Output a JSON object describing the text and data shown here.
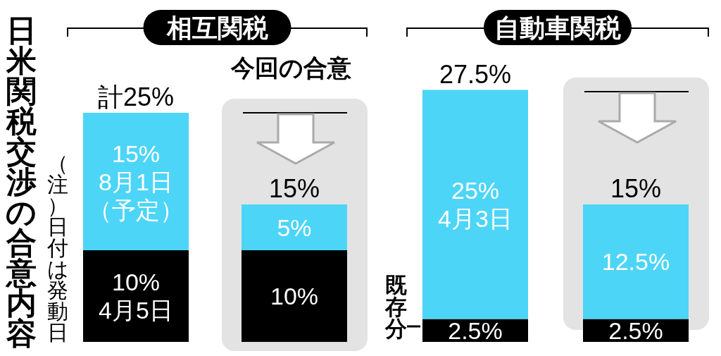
{
  "chart_data": {
    "type": "bar",
    "stacked": true,
    "title": "日米関税交渉の合意内容",
    "categories": [
      null,
      "今回の合意",
      null,
      null
    ],
    "series": [
      {
        "color": "#000000",
        "values": [
          10,
          10,
          2.5,
          2.5
        ],
        "value_labels": [
          "10%\n4月5日",
          "10%",
          "2.5%",
          "2.5%"
        ]
      },
      {
        "color": "#4dd5f7",
        "values": [
          15,
          5,
          25,
          12.5
        ],
        "value_labels": [
          "15%\n8月1日（予定）",
          "5%",
          "25%\n4月3日",
          "12.5%"
        ]
      }
    ],
    "totals": [
      "計25%",
      "15%",
      "27.5%",
      "15%"
    ],
    "annotations": [
      "相互関税",
      "自動車関税",
      "（注）日付は発動日",
      "既存分"
    ]
  }
}
